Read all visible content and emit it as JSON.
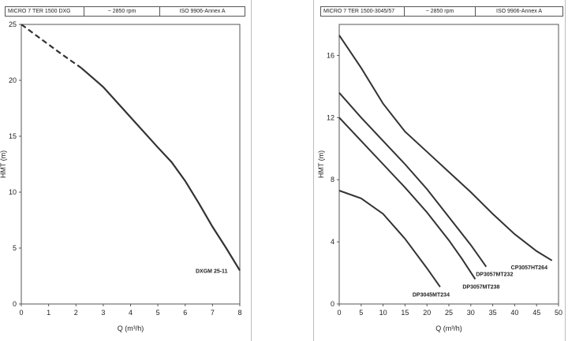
{
  "charts": [
    {
      "header": {
        "model": "MICRO 7 TER 1500 DXG",
        "speed": "~    2850 rpm",
        "standard": "ISO 9906-Annex A"
      },
      "ylabel": "HMT (m)",
      "xlabel": "Q (m³/h)",
      "xticks": [
        "0",
        "1",
        "2",
        "3",
        "4",
        "5",
        "6",
        "7",
        "8"
      ],
      "yticks": [
        "0",
        "5",
        "10",
        "15",
        "20",
        "25"
      ]
    },
    {
      "header": {
        "model": "MICRO 7 TER 1500-3045/57",
        "speed": "~      2850 rpm",
        "standard": "ISO 9906-Annex A"
      },
      "ylabel": "HMT (m)",
      "xlabel": "Q (m³/h)",
      "xticks": [
        "0",
        "5",
        "10",
        "15",
        "20",
        "25",
        "30",
        "35",
        "40",
        "45",
        "50"
      ],
      "yticks": [
        "0",
        "4",
        "8",
        "12",
        "16"
      ]
    }
  ],
  "chart_data": [
    {
      "type": "line",
      "xlabel": "Q (m³/h)",
      "ylabel": "HMT (m)",
      "xlim": [
        0,
        8
      ],
      "ylim": [
        0,
        25
      ],
      "grid": false,
      "series": [
        {
          "name": "DXGM 25-11",
          "color": "#333333",
          "dashed_until_x": 2.2,
          "points": [
            [
              0,
              25
            ],
            [
              0.5,
              24.1
            ],
            [
              1,
              23.2
            ],
            [
              1.5,
              22.3
            ],
            [
              2.2,
              21.1
            ],
            [
              3,
              19.4
            ],
            [
              4,
              16.7
            ],
            [
              5,
              14.0
            ],
            [
              5.5,
              12.7
            ],
            [
              6,
              11.0
            ],
            [
              6.5,
              9.0
            ],
            [
              7,
              6.9
            ],
            [
              7.5,
              5.0
            ],
            [
              8,
              3.0
            ]
          ]
        }
      ]
    },
    {
      "type": "line",
      "xlabel": "Q (m³/h)",
      "ylabel": "HMT (m)",
      "xlim": [
        0,
        50
      ],
      "ylim": [
        0,
        18
      ],
      "grid": false,
      "series": [
        {
          "name": "CP3057HT264",
          "color": "#333333",
          "points": [
            [
              0,
              17.3
            ],
            [
              5,
              15.2
            ],
            [
              10,
              12.9
            ],
            [
              15,
              11.1
            ],
            [
              20,
              9.8
            ],
            [
              25,
              8.5
            ],
            [
              30,
              7.2
            ],
            [
              35,
              5.8
            ],
            [
              40,
              4.5
            ],
            [
              45,
              3.4
            ],
            [
              48.5,
              2.8
            ]
          ]
        },
        {
          "name": "DP3057MT232",
          "color": "#333333",
          "points": [
            [
              0,
              13.6
            ],
            [
              5,
              12.0
            ],
            [
              10,
              10.5
            ],
            [
              15,
              9.0
            ],
            [
              20,
              7.4
            ],
            [
              25,
              5.6
            ],
            [
              30,
              3.8
            ],
            [
              33.5,
              2.4
            ]
          ]
        },
        {
          "name": "DP3057MT238",
          "color": "#333333",
          "points": [
            [
              0,
              12.0
            ],
            [
              5,
              10.5
            ],
            [
              10,
              9.0
            ],
            [
              15,
              7.5
            ],
            [
              20,
              5.9
            ],
            [
              25,
              4.1
            ],
            [
              28,
              2.9
            ],
            [
              31,
              1.6
            ]
          ]
        },
        {
          "name": "DP3045MT234",
          "color": "#333333",
          "points": [
            [
              0,
              7.3
            ],
            [
              5,
              6.8
            ],
            [
              10,
              5.8
            ],
            [
              15,
              4.2
            ],
            [
              20,
              2.3
            ],
            [
              23,
              1.1
            ]
          ]
        }
      ]
    }
  ]
}
